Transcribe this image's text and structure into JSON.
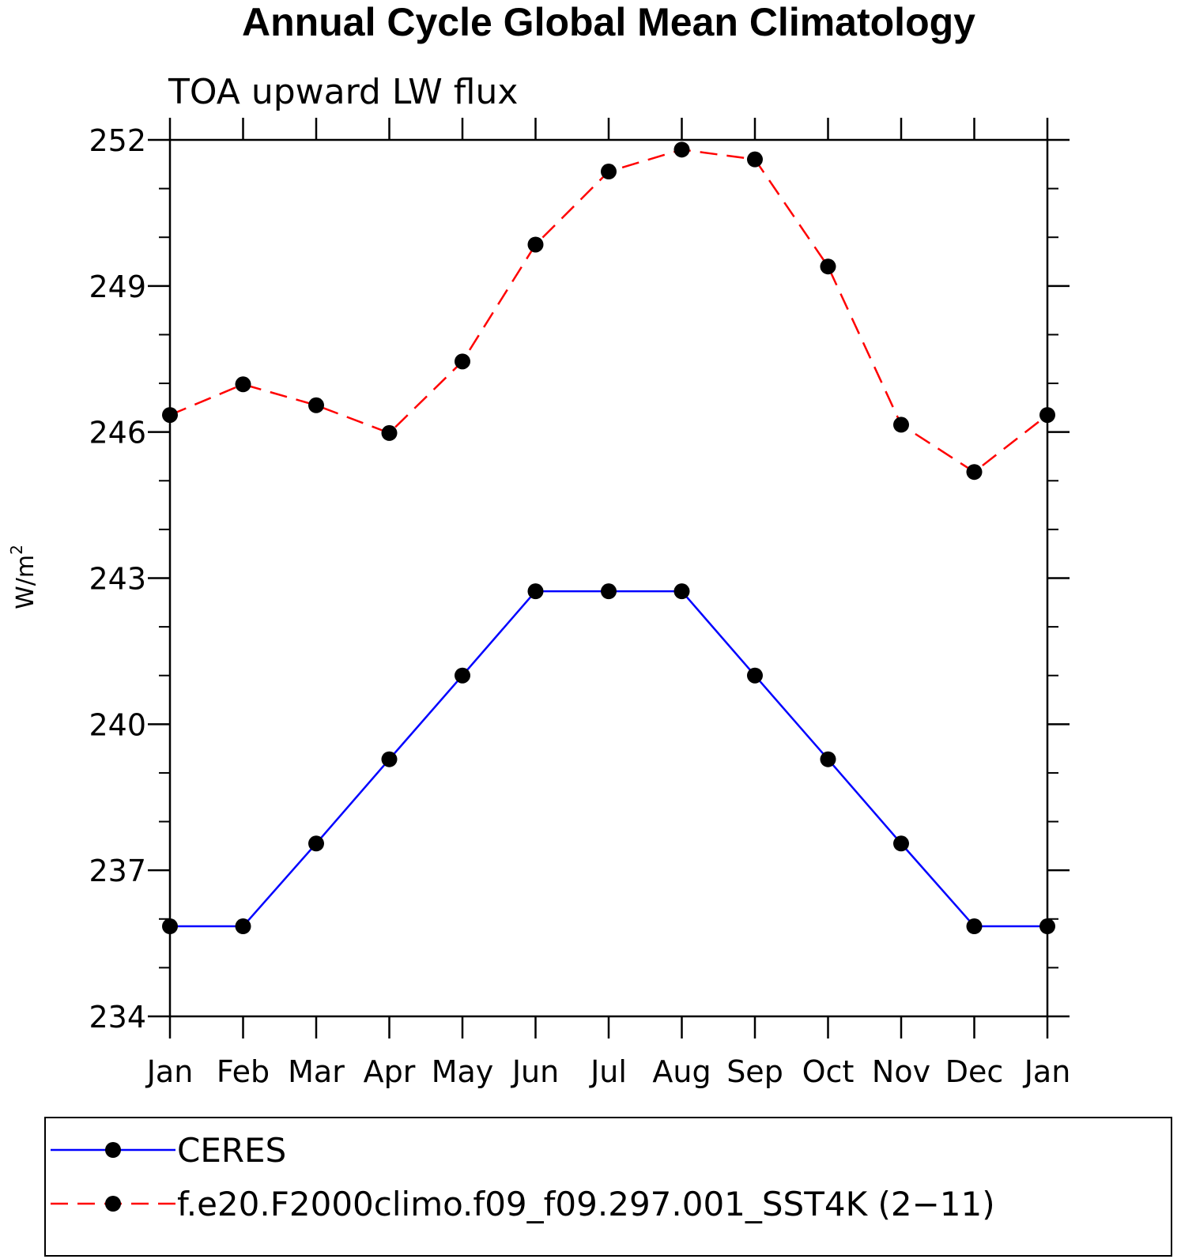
{
  "chart_data": {
    "type": "line",
    "title": "Annual Cycle Global Mean Climatology",
    "subtitle": "TOA upward LW flux",
    "ylabel": "W/m",
    "ylabel_sup": "2",
    "xlabel": "",
    "categories": [
      "Jan",
      "Feb",
      "Mar",
      "Apr",
      "May",
      "Jun",
      "Jul",
      "Aug",
      "Sep",
      "Oct",
      "Nov",
      "Dec",
      "Jan"
    ],
    "ylim": [
      234,
      252
    ],
    "yticks": [
      234,
      237,
      240,
      243,
      246,
      249,
      252
    ],
    "grid": false,
    "legend_position": "bottom",
    "series": [
      {
        "name": "CERES",
        "color": "#0000ff",
        "style": "solid",
        "marker": "circle",
        "values": [
          235.85,
          235.85,
          237.55,
          239.28,
          241.0,
          242.73,
          242.73,
          242.73,
          241.0,
          239.28,
          237.55,
          235.85,
          235.85
        ]
      },
      {
        "name": "f.e20.F2000climo.f09_f09.297.001_SST4K (2−11)",
        "color": "#ff0000",
        "style": "dashed",
        "marker": "circle",
        "values": [
          246.35,
          246.98,
          246.55,
          245.98,
          247.45,
          249.85,
          251.35,
          251.8,
          251.6,
          249.4,
          246.15,
          245.18,
          246.35
        ]
      }
    ]
  }
}
